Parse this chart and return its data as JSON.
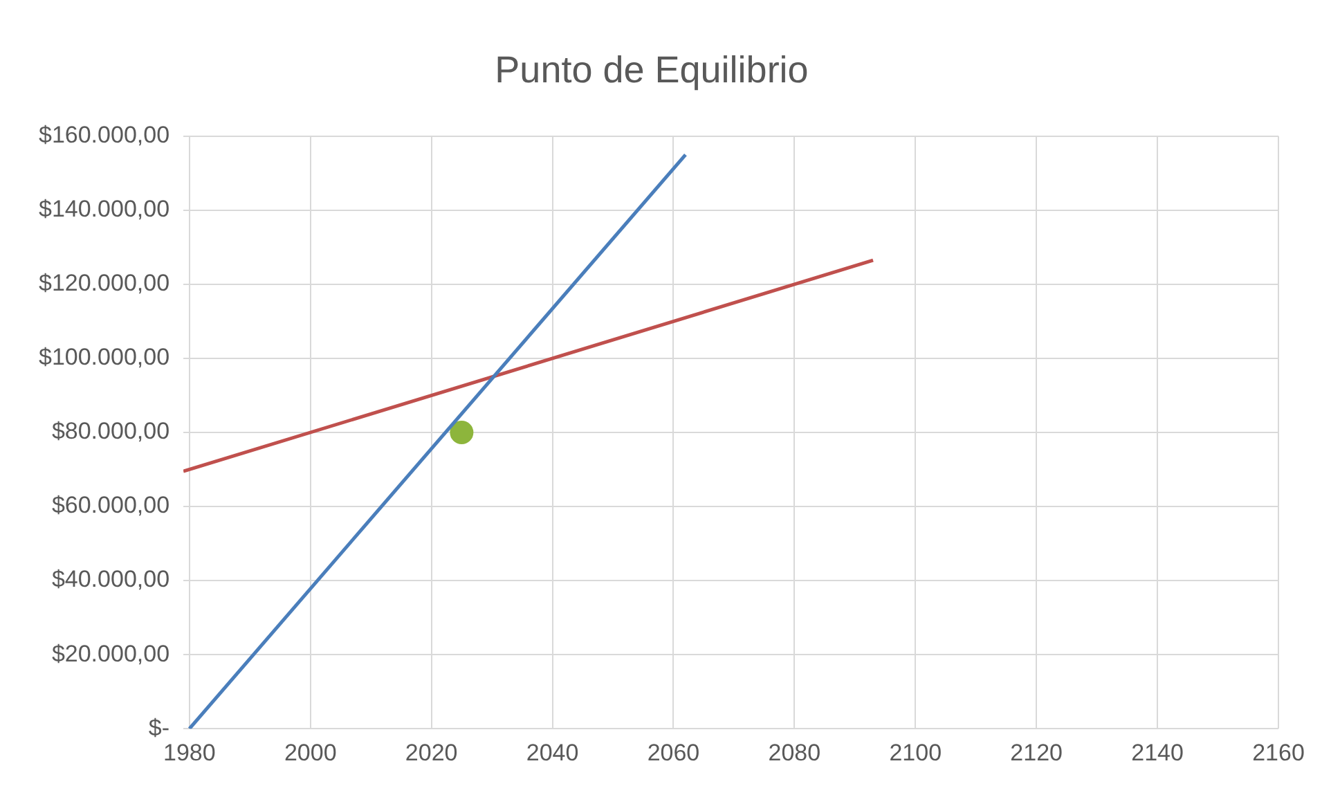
{
  "chart_data": {
    "type": "line",
    "title": "Punto de Equilibrio",
    "xlim": [
      1979,
      2160
    ],
    "xticks": [
      1980,
      2000,
      2020,
      2040,
      2060,
      2080,
      2100,
      2120,
      2140,
      2160
    ],
    "ylim": [
      0,
      160000
    ],
    "yticks": [
      {
        "value": 0,
        "label": "$-"
      },
      {
        "value": 20000,
        "label": "$20.000,00"
      },
      {
        "value": 40000,
        "label": "$40.000,00"
      },
      {
        "value": 60000,
        "label": "$60.000,00"
      },
      {
        "value": 80000,
        "label": "$80.000,00"
      },
      {
        "value": 100000,
        "label": "$100.000,00"
      },
      {
        "value": 120000,
        "label": "$120.000,00"
      },
      {
        "value": 140000,
        "label": "$140.000,00"
      },
      {
        "value": 160000,
        "label": "$160.000,00"
      }
    ],
    "grid": true,
    "legend": false,
    "marker": "none",
    "series": [
      {
        "color": "#4a7ebb",
        "x": [
          1980,
          2062
        ],
        "values": [
          0,
          155000
        ]
      },
      {
        "color": "#c0504d",
        "x": [
          1979,
          2093
        ],
        "values": [
          69500,
          126500
        ]
      },
      {
        "type": "scatter",
        "color": "#8db53c",
        "x": [
          2025
        ],
        "values": [
          80000
        ],
        "marker": "circle"
      }
    ]
  }
}
